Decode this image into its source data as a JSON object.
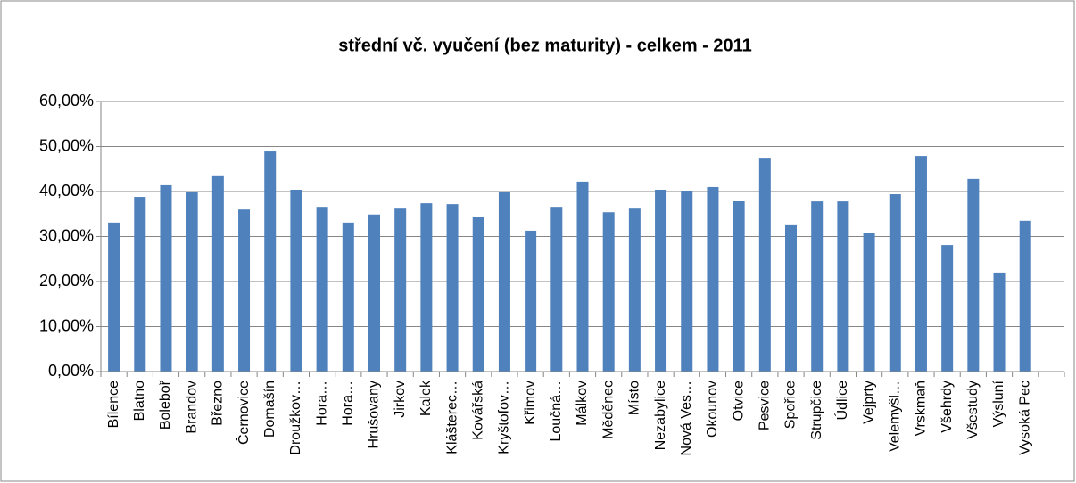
{
  "chart_data": {
    "type": "bar",
    "title": "střední vč. vyučení (bez maturity) - celkem - 2011",
    "categories": [
      "Bílence",
      "Blatno",
      "Boleboř",
      "Brandov",
      "Březno",
      "Černovice",
      "Domašín",
      "Droužkov…",
      "Hora…",
      "Hora…",
      "Hrušovany",
      "Jirkov",
      "Kalek",
      "Klášterec…",
      "Kovářská",
      "Kryštofov…",
      "Křimov",
      "Loučná…",
      "Málkov",
      "Měděnec",
      "Místo",
      "Nezabylice",
      "Nová Ves…",
      "Okounov",
      "Otvice",
      "Pesvice",
      "Spořice",
      "Strupčice",
      "Údlice",
      "Vejprty",
      "Velemyšl…",
      "Vrskmaň",
      "Všehrdy",
      "Všestudy",
      "Výsluní",
      "Vysoká Pec",
      null
    ],
    "values": [
      33.1,
      38.8,
      41.4,
      39.8,
      43.6,
      36.0,
      48.9,
      40.4,
      36.6,
      33.1,
      34.9,
      36.4,
      37.4,
      37.2,
      34.3,
      40.0,
      31.3,
      36.6,
      42.2,
      35.4,
      36.4,
      40.4,
      40.2,
      41.0,
      38.0,
      47.5,
      32.7,
      37.8,
      37.8,
      30.7,
      39.4,
      47.9,
      28.1,
      42.8,
      22.0,
      33.5,
      null
    ],
    "color": "#4f81bd",
    "ylim": [
      0,
      60
    ],
    "yticks": [
      {
        "value": 0,
        "label": "0,00%"
      },
      {
        "value": 10,
        "label": "10,00%"
      },
      {
        "value": 20,
        "label": "20,00%"
      },
      {
        "value": 30,
        "label": "30,00%"
      },
      {
        "value": 40,
        "label": "40,00%"
      },
      {
        "value": 50,
        "label": "50,00%"
      },
      {
        "value": 60,
        "label": "60,00%"
      }
    ],
    "grid": true
  }
}
